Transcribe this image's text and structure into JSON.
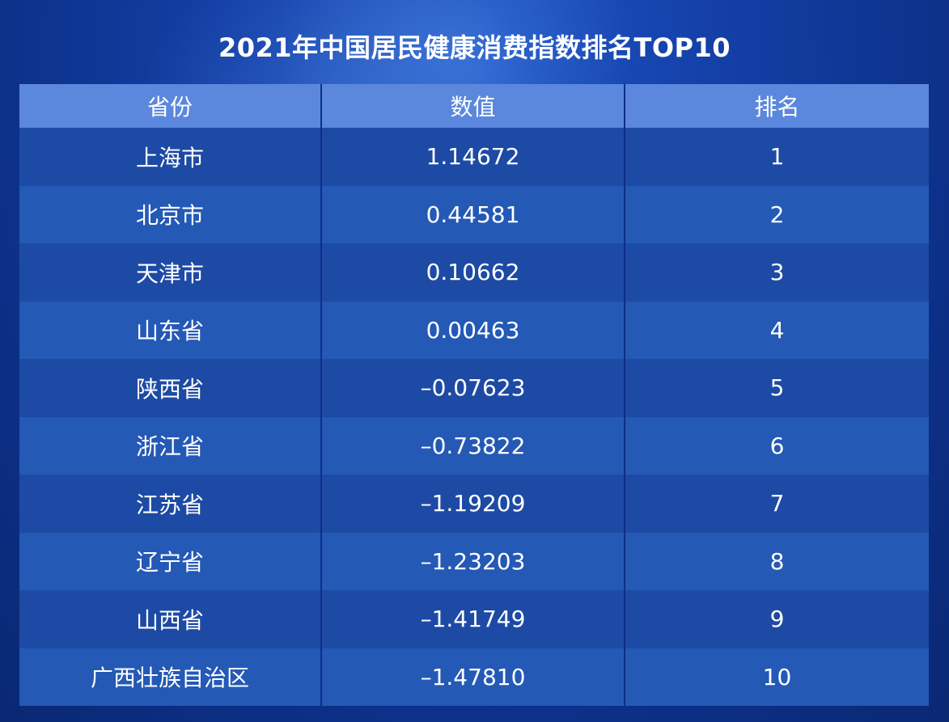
{
  "title": "2021年中国居民健康消费指数排名TOP10",
  "table": {
    "headers": [
      "省份",
      "数值",
      "排名"
    ],
    "rows": [
      {
        "province": "上海市",
        "value": "1.14672",
        "rank": "1"
      },
      {
        "province": "北京市",
        "value": "0.44581",
        "rank": "2"
      },
      {
        "province": "天津市",
        "value": "0.10662",
        "rank": "3"
      },
      {
        "province": "山东省",
        "value": "0.00463",
        "rank": "4"
      },
      {
        "province": "陕西省",
        "value": "–0.07623",
        "rank": "5"
      },
      {
        "province": "浙江省",
        "value": "–0.73822",
        "rank": "6"
      },
      {
        "province": "江苏省",
        "value": "–1.19209",
        "rank": "7"
      },
      {
        "province": "辽宁省",
        "value": "–1.23203",
        "rank": "8"
      },
      {
        "province": "山西省",
        "value": "–1.41749",
        "rank": "9"
      },
      {
        "province": "广西壮族自治区",
        "value": "–1.47810",
        "rank": "10"
      }
    ]
  },
  "colors": {
    "background": "#1440a8",
    "header": "#5b88dc",
    "row_dark": "#1d4aa4",
    "row_light": "#2459b6",
    "text": "#ffffff"
  }
}
